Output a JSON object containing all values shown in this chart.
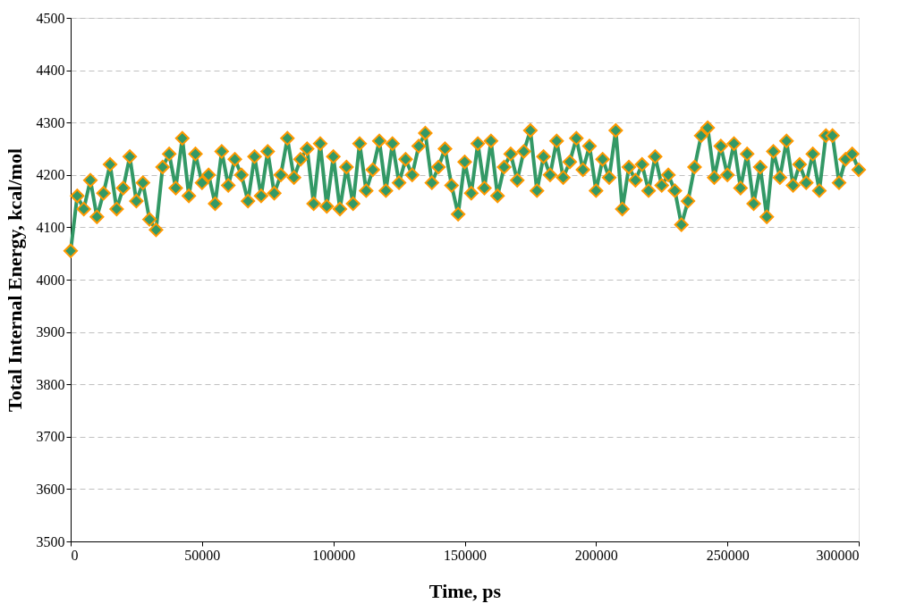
{
  "chart_data": {
    "type": "line",
    "xlabel": "Time, ps",
    "ylabel": "Total Internal Energy, kcal/mol",
    "x": [
      0,
      2500,
      5000,
      7500,
      10000,
      12500,
      15000,
      17500,
      20000,
      22500,
      25000,
      27500,
      30000,
      32500,
      35000,
      37500,
      40000,
      42500,
      45000,
      47500,
      50000,
      52500,
      55000,
      57500,
      60000,
      62500,
      65000,
      67500,
      70000,
      72500,
      75000,
      77500,
      80000,
      82500,
      85000,
      87500,
      90000,
      92500,
      95000,
      97500,
      100000,
      102500,
      105000,
      107500,
      110000,
      112500,
      115000,
      117500,
      120000,
      122500,
      125000,
      127500,
      130000,
      132500,
      135000,
      137500,
      140000,
      142500,
      145000,
      147500,
      150000,
      152500,
      155000,
      157500,
      160000,
      162500,
      165000,
      167500,
      170000,
      172500,
      175000,
      177500,
      180000,
      182500,
      185000,
      187500,
      190000,
      192500,
      195000,
      197500,
      200000,
      202500,
      205000,
      207500,
      210000,
      212500,
      215000,
      217500,
      220000,
      222500,
      225000,
      227500,
      230000,
      232500,
      235000,
      237500,
      240000,
      242500,
      245000,
      247500,
      250000,
      252500,
      255000,
      257500,
      260000,
      262500,
      265000,
      267500,
      270000,
      272500,
      275000,
      277500,
      280000,
      282500,
      285000,
      287500,
      290000,
      292500,
      295000,
      297500,
      300000
    ],
    "series": [
      {
        "color": "#339966",
        "values": [
          4055,
          4160,
          4135,
          4190,
          4120,
          4165,
          4220,
          4135,
          4175,
          4235,
          4150,
          4185,
          4115,
          4095,
          4215,
          4240,
          4175,
          4270,
          4160,
          4240,
          4185,
          4200,
          4145,
          4245,
          4180,
          4230,
          4200,
          4150,
          4235,
          4160,
          4245,
          4165,
          4200,
          4270,
          4195,
          4230,
          4250,
          4145,
          4260,
          4140,
          4235,
          4135,
          4215,
          4145,
          4260,
          4170,
          4210,
          4265,
          4170,
          4260,
          4185,
          4230,
          4200,
          4255,
          4280,
          4185,
          4215,
          4250,
          4180,
          4125,
          4225,
          4165,
          4260,
          4175,
          4265,
          4160,
          4215,
          4240,
          4190,
          4245,
          4285,
          4170,
          4235,
          4200,
          4265,
          4195,
          4225,
          4270,
          4210,
          4255,
          4170,
          4230,
          4195,
          4285,
          4135,
          4215,
          4190,
          4220,
          4170,
          4235,
          4180,
          4200,
          4170,
          4105,
          4150,
          4215,
          4275,
          4290,
          4195,
          4255,
          4200,
          4260,
          4175,
          4240,
          4145,
          4215,
          4120,
          4245,
          4195,
          4265,
          4180,
          4220,
          4185,
          4240,
          4170,
          4275,
          4275,
          4185,
          4230,
          4240,
          4210
        ]
      }
    ],
    "xlim": [
      0,
      300000
    ],
    "xticks": [
      0,
      50000,
      100000,
      150000,
      200000,
      250000,
      300000
    ],
    "ylim": [
      3500,
      4500
    ],
    "yticks": [
      3500,
      3600,
      3700,
      3800,
      3900,
      4000,
      4100,
      4200,
      4300,
      4400,
      4500
    ],
    "grid": "y",
    "marker": "diamond",
    "line_style": "solid"
  }
}
